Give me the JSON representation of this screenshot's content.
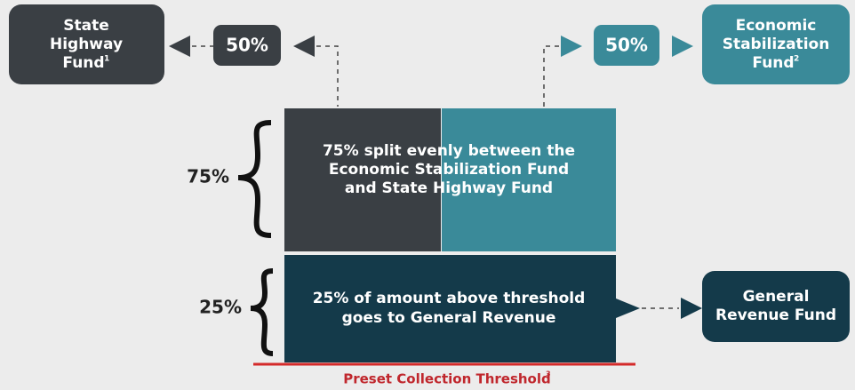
{
  "state_highway_fund": {
    "lines": [
      "State",
      "Highway",
      "Fund"
    ],
    "note": "1"
  },
  "left_split": "50%",
  "right_split": "50%",
  "economic_stabilization_fund": {
    "lines": [
      "Economic",
      "Stabilization",
      "Fund"
    ],
    "note": "2"
  },
  "upper_share": "75%",
  "upper_block": {
    "lines": [
      "75% split evenly between the",
      "Economic Stabilization Fund",
      "and State Highway Fund"
    ]
  },
  "lower_share": "25%",
  "lower_block": {
    "lines": [
      "25% of amount above threshold",
      "goes to General Revenue"
    ]
  },
  "general_revenue_fund": {
    "lines": [
      "General",
      "Revenue Fund"
    ]
  },
  "threshold": {
    "label": "Preset Collection Threshold",
    "note": "3"
  }
}
